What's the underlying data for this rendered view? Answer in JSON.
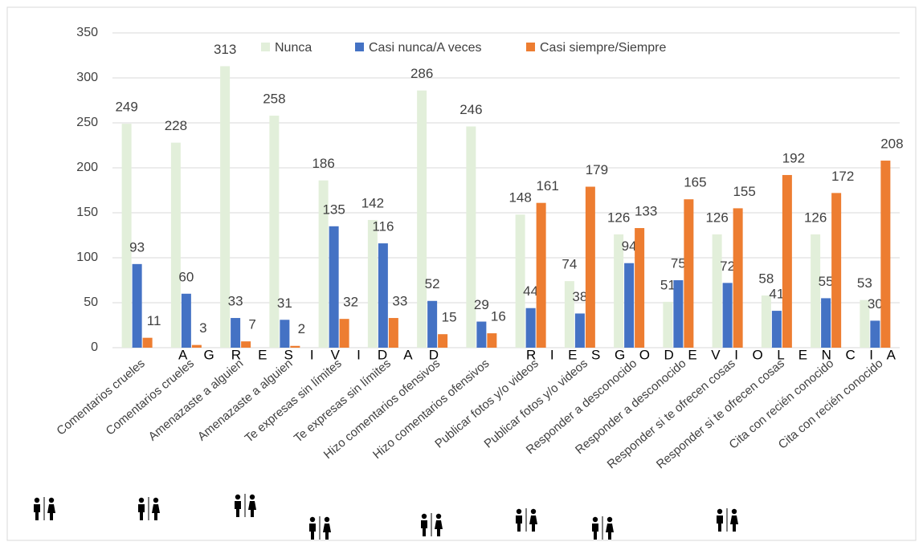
{
  "chart_data": {
    "type": "bar",
    "categories": [
      "Comentarios crueles",
      "Comentarios crueles",
      "Amenazaste a alguien",
      "Amenazaste a alguien",
      "Te expresas sin límites",
      "Te expresas sin límites",
      "Hizo comentarios ofensivos",
      "Hizo comentarios ofensivos",
      "Publicar fotos y/o videos",
      "Publicar fotos y/o videos",
      "Responder a desconocido",
      "Responder a desconocido",
      "Responder si te ofrecen cosas",
      "Responder si te ofrecen cosas",
      "Cita con recién conocido",
      "Cita con recién conocido"
    ],
    "series": [
      {
        "name": "Nunca",
        "color": "#e2efda",
        "values": [
          249,
          228,
          313,
          258,
          186,
          142,
          286,
          246,
          148,
          74,
          126,
          51,
          126,
          58,
          126,
          53
        ]
      },
      {
        "name": "Casi nunca/A veces",
        "color": "#4472c4",
        "values": [
          93,
          60,
          33,
          31,
          135,
          116,
          52,
          29,
          44,
          38,
          94,
          75,
          72,
          41,
          55,
          30
        ]
      },
      {
        "name": "Casi siempre/Siempre",
        "color": "#ed7d31",
        "values": [
          11,
          3,
          7,
          2,
          32,
          33,
          15,
          16,
          161,
          179,
          133,
          165,
          155,
          192,
          172,
          208
        ]
      }
    ],
    "ylim": [
      0,
      350
    ],
    "yticks": [
      0,
      50,
      100,
      150,
      200,
      250,
      300,
      350
    ],
    "grid": true,
    "legend": "top",
    "annotations": [
      "A G R E S I V I D A D",
      "R I E S G O D E V I O L E N C I A"
    ]
  }
}
